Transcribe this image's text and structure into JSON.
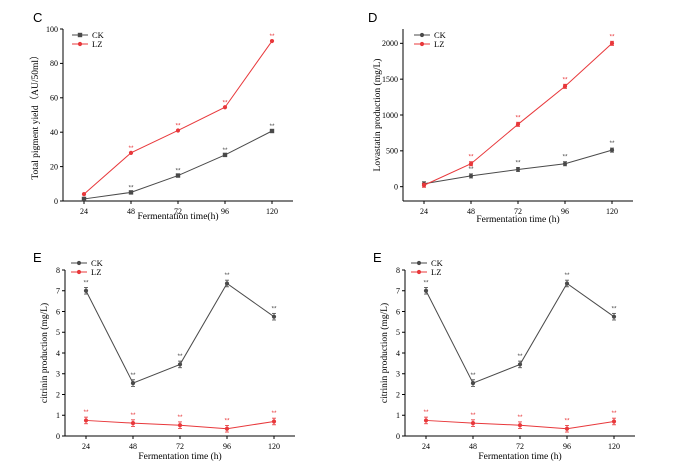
{
  "significance_mark": "**",
  "colors": {
    "CK": "#4a4a4a",
    "LZ": "#e8383b",
    "axis": "#000000"
  },
  "chart_data": [
    {
      "panel": "C",
      "type": "line",
      "xlabel": "Fermentation time(h)",
      "ylabel": "Total pigment yield（AU/50ml）",
      "categories": [
        "24",
        "48",
        "72",
        "96",
        "120"
      ],
      "ylim": [
        0,
        100
      ],
      "yticks": [
        "0",
        "20",
        "40",
        "60",
        "80",
        "100"
      ],
      "legend_position": "top-left",
      "series": [
        {
          "name": "CK",
          "values": [
            1.2,
            5.0,
            14.8,
            26.8,
            40.7
          ],
          "significance": [
            false,
            true,
            true,
            true,
            true
          ]
        },
        {
          "name": "LZ",
          "values": [
            4.0,
            28.0,
            41.0,
            54.5,
            93.0
          ],
          "significance": [
            false,
            true,
            true,
            true,
            true
          ]
        }
      ]
    },
    {
      "panel": "D",
      "type": "line",
      "xlabel": "Fermentation time (h)",
      "ylabel": "Lovastatin production (mg/L)",
      "categories": [
        "24",
        "48",
        "72",
        "96",
        "120"
      ],
      "ylim": [
        -200,
        2200
      ],
      "yticks": [
        "0",
        "500",
        "1000",
        "1500",
        "2000"
      ],
      "legend_position": "top-left",
      "series": [
        {
          "name": "CK",
          "values": [
            40,
            150,
            240,
            320,
            510
          ],
          "significance": [
            false,
            true,
            true,
            true,
            true
          ]
        },
        {
          "name": "LZ",
          "values": [
            20,
            320,
            870,
            1400,
            2000
          ],
          "significance": [
            false,
            true,
            true,
            true,
            true
          ]
        }
      ]
    },
    {
      "panel": "E",
      "type": "line",
      "xlabel": "Fermentation time (h)",
      "ylabel": "citrinin production (mg/L)",
      "categories": [
        "24",
        "48",
        "72",
        "96",
        "120"
      ],
      "ylim": [
        0,
        8
      ],
      "yticks": [
        "0",
        "1",
        "2",
        "3",
        "4",
        "5",
        "6",
        "7",
        "8"
      ],
      "legend_position": "top-left",
      "series": [
        {
          "name": "CK",
          "values": [
            7.0,
            2.55,
            3.45,
            7.35,
            5.75
          ],
          "significance": [
            true,
            true,
            true,
            true,
            true
          ]
        },
        {
          "name": "LZ",
          "values": [
            0.75,
            0.62,
            0.52,
            0.35,
            0.7
          ],
          "significance": [
            true,
            true,
            true,
            true,
            true
          ]
        }
      ]
    },
    {
      "panel": "E",
      "type": "line",
      "xlabel": "Fermentation time (h)",
      "ylabel": "citrinin production (mg/L)",
      "categories": [
        "24",
        "48",
        "72",
        "96",
        "120"
      ],
      "ylim": [
        0,
        8
      ],
      "yticks": [
        "0",
        "1",
        "2",
        "3",
        "4",
        "5",
        "6",
        "7",
        "8"
      ],
      "legend_position": "top-left",
      "series": [
        {
          "name": "CK",
          "values": [
            7.0,
            2.55,
            3.45,
            7.35,
            5.75
          ],
          "significance": [
            true,
            true,
            true,
            true,
            true
          ]
        },
        {
          "name": "LZ",
          "values": [
            0.75,
            0.62,
            0.52,
            0.35,
            0.7
          ],
          "significance": [
            true,
            true,
            true,
            true,
            true
          ]
        }
      ]
    }
  ]
}
